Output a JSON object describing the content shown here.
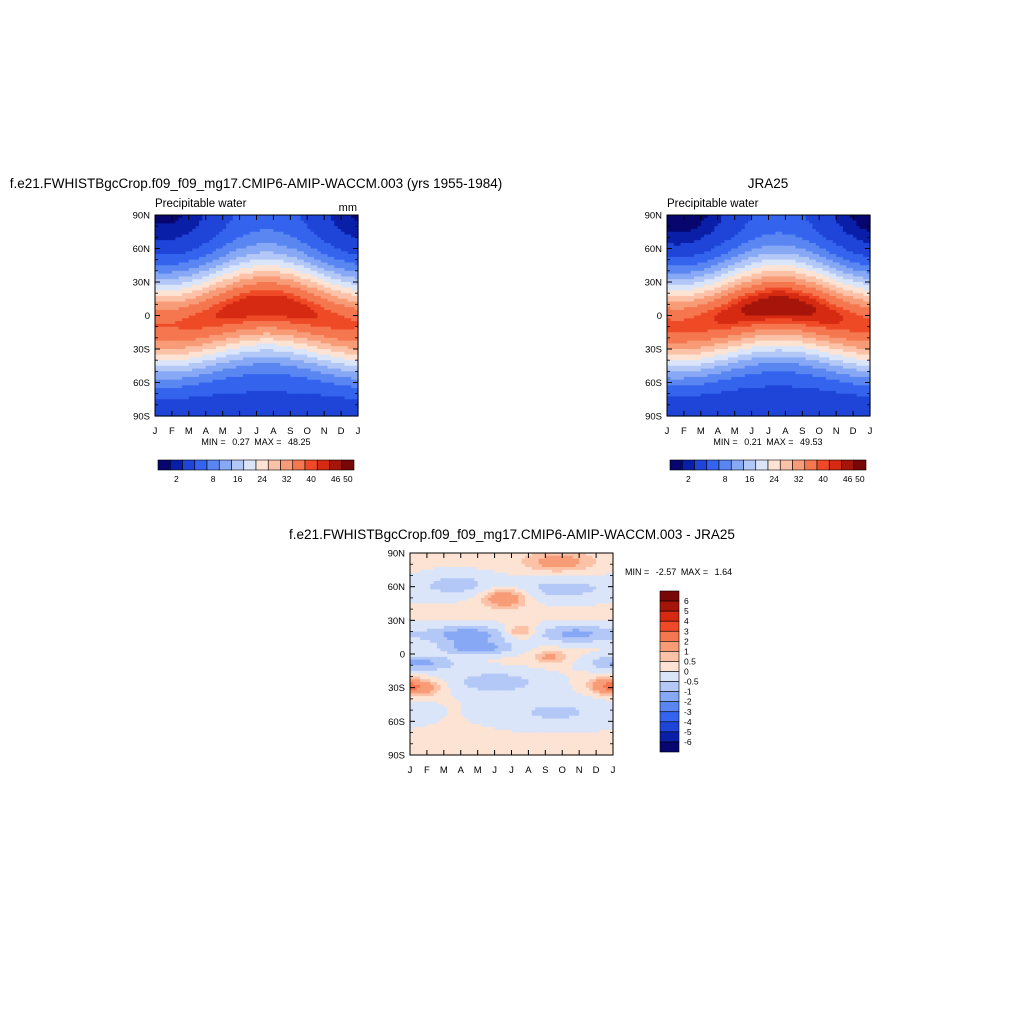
{
  "chart_data": [
    {
      "type": "heatmap",
      "title": "f.e21.FWHISTBgcCrop.f09_f09_mg17.CMIP6-AMIP-WACCM.003 (yrs 1955-1984)",
      "left_label": "Precipitable water",
      "right_label": "mm",
      "x_tick_labels": [
        "J",
        "F",
        "M",
        "A",
        "M",
        "J",
        "J",
        "A",
        "S",
        "O",
        "N",
        "D",
        "J"
      ],
      "y_tick_labels": [
        "90N",
        "60N",
        "30N",
        "0",
        "30S",
        "60S",
        "90S"
      ],
      "stats": {
        "min_label": "MIN =",
        "min": "0.27",
        "max_label": "MAX =",
        "max": "48.25"
      },
      "field": {
        "amp": 22,
        "eq_base": 46,
        "eq_seasonal": 2,
        "polar_base": 5,
        "itcz_shift": 9
      },
      "colorbar": {
        "labels": [
          "2",
          "8",
          "16",
          "24",
          "32",
          "40",
          "46",
          "50"
        ],
        "levels": [
          0,
          2,
          4,
          8,
          12,
          16,
          20,
          24,
          28,
          32,
          36,
          40,
          44,
          46,
          48,
          50,
          60
        ],
        "colors": [
          "#06066e",
          "#0a1fa8",
          "#1f44d8",
          "#3464ee",
          "#5a86f2",
          "#86a8f5",
          "#b3c8f7",
          "#dbe5f9",
          "#fde3d3",
          "#fbc2a8",
          "#f89c78",
          "#f5774f",
          "#ef4a27",
          "#d62a12",
          "#a6150a",
          "#780707"
        ]
      }
    },
    {
      "type": "heatmap",
      "title": "JRA25",
      "left_label": "Precipitable water",
      "right_label": "",
      "x_tick_labels": [
        "J",
        "F",
        "M",
        "A",
        "M",
        "J",
        "J",
        "A",
        "S",
        "O",
        "N",
        "D",
        "J"
      ],
      "y_tick_labels": [
        "90N",
        "60N",
        "30N",
        "0",
        "30S",
        "60S",
        "90S"
      ],
      "stats": {
        "min_label": "MIN =",
        "min": "0.21",
        "max_label": "MAX =",
        "max": "49.53"
      },
      "field": {
        "amp": 22,
        "eq_base": 47,
        "eq_seasonal": 2.5,
        "polar_base": 4,
        "itcz_shift": 9
      },
      "colorbar": {
        "labels": [
          "2",
          "8",
          "16",
          "24",
          "32",
          "40",
          "46",
          "50"
        ],
        "levels": [
          0,
          2,
          4,
          8,
          12,
          16,
          20,
          24,
          28,
          32,
          36,
          40,
          44,
          46,
          48,
          50,
          60
        ],
        "colors": [
          "#06066e",
          "#0a1fa8",
          "#1f44d8",
          "#3464ee",
          "#5a86f2",
          "#86a8f5",
          "#b3c8f7",
          "#dbe5f9",
          "#fde3d3",
          "#fbc2a8",
          "#f89c78",
          "#f5774f",
          "#ef4a27",
          "#d62a12",
          "#a6150a",
          "#780707"
        ]
      }
    },
    {
      "type": "heatmap",
      "title": "f.e21.FWHISTBgcCrop.f09_f09_mg17.CMIP6-AMIP-WACCM.003 - JRA25",
      "left_label": "",
      "right_label": "",
      "x_tick_labels": [
        "J",
        "F",
        "M",
        "A",
        "M",
        "J",
        "J",
        "A",
        "S",
        "O",
        "N",
        "D",
        "J"
      ],
      "y_tick_labels": [
        "90N",
        "60N",
        "30N",
        "0",
        "30S",
        "60S",
        "90S"
      ],
      "stats": {
        "min_label": "MIN =",
        "min": "-2.57",
        "max_label": "MAX =",
        "max": "1.64"
      },
      "anomalies": [
        {
          "month": 8.8,
          "lat": 82,
          "amp": 1.3,
          "sm": 1.4,
          "sl": 6
        },
        {
          "month": 5.6,
          "lat": 50,
          "amp": 1.8,
          "sm": 0.9,
          "sl": 6
        },
        {
          "month": 6.5,
          "lat": 20,
          "amp": 1.3,
          "sm": 0.6,
          "sl": 4
        },
        {
          "month": 8.3,
          "lat": -3,
          "amp": 1.1,
          "sm": 0.7,
          "sl": 4
        },
        {
          "month": 11.6,
          "lat": -28,
          "amp": 1.5,
          "sm": 0.7,
          "sl": 5
        },
        {
          "month": 0.6,
          "lat": -30,
          "amp": 1.5,
          "sm": 0.9,
          "sl": 5
        },
        {
          "month": 3.4,
          "lat": 17,
          "amp": -1.5,
          "sm": 1.8,
          "sl": 6
        },
        {
          "month": 9.8,
          "lat": 18,
          "amp": -1.3,
          "sm": 1.6,
          "sl": 6
        },
        {
          "month": 0.6,
          "lat": -8,
          "amp": -1.3,
          "sm": 1.5,
          "sl": 5
        },
        {
          "month": 5.0,
          "lat": -25,
          "amp": -0.9,
          "sm": 2.2,
          "sl": 8
        },
        {
          "month": 4.0,
          "lat": 5,
          "amp": -1.4,
          "sm": 1.5,
          "sl": 4
        },
        {
          "month": 9.0,
          "lat": 58,
          "amp": -0.8,
          "sm": 2.5,
          "sl": 8
        },
        {
          "month": 2.8,
          "lat": 62,
          "amp": -0.8,
          "sm": 1.5,
          "sl": 8
        },
        {
          "month": 8.6,
          "lat": -52,
          "amp": -0.7,
          "sm": 3.0,
          "sl": 10
        }
      ],
      "colorbar": {
        "labels": [
          "6",
          "5",
          "4",
          "3",
          "2",
          "1",
          "0.5",
          "0",
          "-0.5",
          "-1",
          "-2",
          "-3",
          "-4",
          "-5",
          "-6"
        ],
        "levels": [
          -99,
          -6,
          -5,
          -4,
          -3,
          -2,
          -1,
          -0.5,
          0,
          0.5,
          1,
          2,
          3,
          4,
          5,
          6,
          99
        ],
        "colors": [
          "#06066e",
          "#0a1fa8",
          "#1f44d8",
          "#3464ee",
          "#5a86f2",
          "#86a8f5",
          "#b3c8f7",
          "#dbe5f9",
          "#fde3d3",
          "#fbc2a8",
          "#f89c78",
          "#f5774f",
          "#ef4a27",
          "#d62a12",
          "#a6150a",
          "#780707"
        ]
      }
    }
  ]
}
